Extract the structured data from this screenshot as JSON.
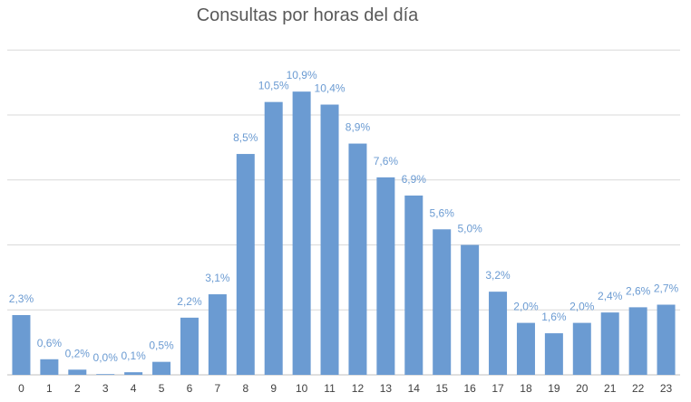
{
  "chart_data": {
    "type": "bar",
    "title": "Consultas por horas del día",
    "categories": [
      "0",
      "1",
      "2",
      "3",
      "4",
      "5",
      "6",
      "7",
      "8",
      "9",
      "10",
      "11",
      "12",
      "13",
      "14",
      "15",
      "16",
      "17",
      "18",
      "19",
      "20",
      "21",
      "22",
      "23"
    ],
    "values": [
      2.3,
      0.6,
      0.2,
      0.0,
      0.1,
      0.5,
      2.2,
      3.1,
      8.5,
      10.5,
      10.9,
      10.4,
      8.9,
      7.6,
      6.9,
      5.6,
      5.0,
      3.2,
      2.0,
      1.6,
      2.0,
      2.4,
      2.6,
      2.7
    ],
    "data_labels": [
      "2,3%",
      "0,6%",
      "0,2%",
      "0,0%",
      "0,1%",
      "0,5%",
      "2,2%",
      "3,1%",
      "8,5%",
      "10,5%",
      "10,9%",
      "10,4%",
      "8,9%",
      "7,6%",
      "6,9%",
      "5,6%",
      "5,0%",
      "3,2%",
      "2,0%",
      "1,6%",
      "2,0%",
      "2,4%",
      "2,6%",
      "2,7%"
    ],
    "ylim": [
      0,
      12.5
    ],
    "y_gridlines": [
      2.5,
      5,
      7.5,
      10,
      12.5
    ],
    "grid": true,
    "legend": "none",
    "bar_color": "#6b9bd2",
    "xlabel": "",
    "ylabel": ""
  }
}
